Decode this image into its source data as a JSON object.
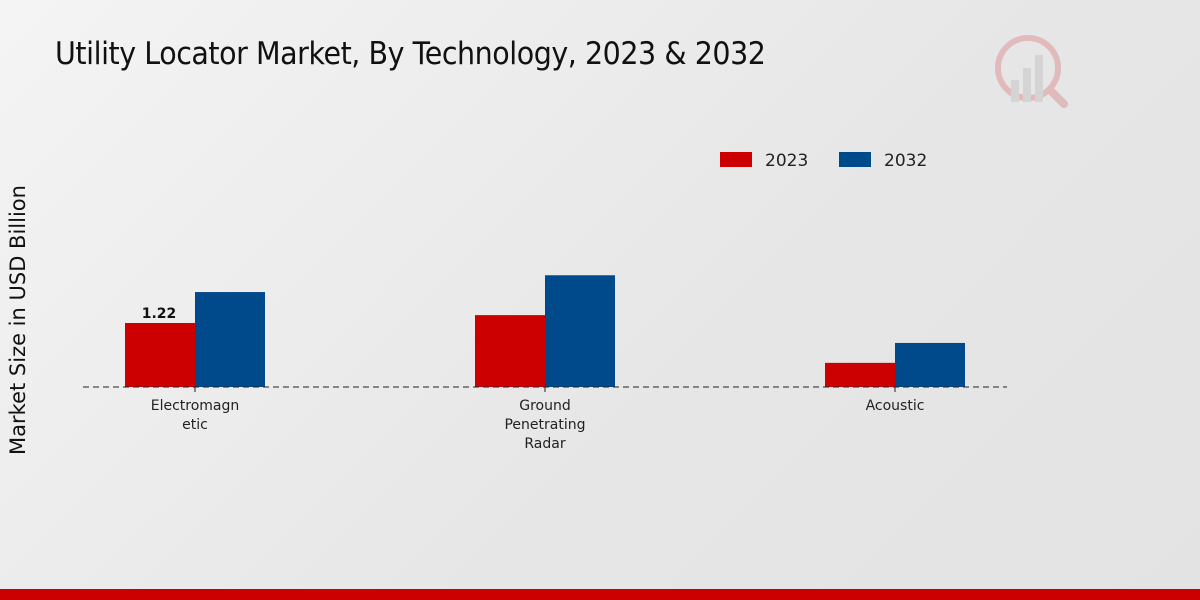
{
  "chart_data": {
    "type": "bar",
    "title": "Utility Locator Market, By Technology, 2023 & 2032",
    "xlabel": "",
    "ylabel": "Market Size in USD Billion",
    "categories": [
      [
        "Electromagn",
        "etic"
      ],
      [
        "Ground",
        "Penetrating",
        "Radar"
      ],
      [
        "Acoustic"
      ]
    ],
    "series": [
      {
        "name": "2023",
        "color": "#cc0000",
        "values": [
          1.22,
          1.37,
          0.46
        ]
      },
      {
        "name": "2032",
        "color": "#004a8b",
        "values": [
          1.81,
          2.13,
          0.84
        ]
      }
    ],
    "data_labels": [
      {
        "series": 0,
        "index": 0,
        "text": "1.22"
      }
    ],
    "legend_position": "top-right",
    "grid": false
  }
}
